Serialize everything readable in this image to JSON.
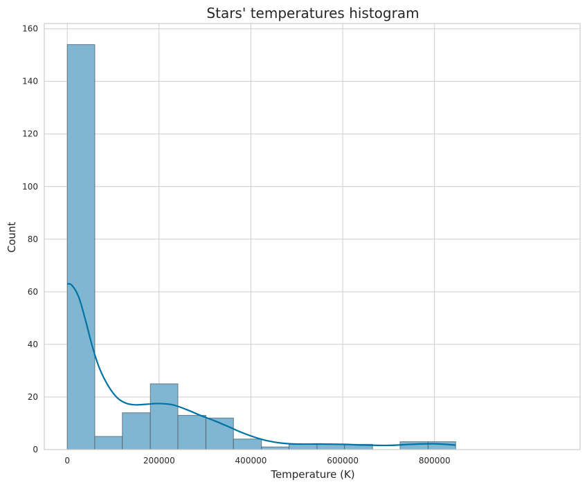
{
  "chart_data": {
    "type": "bar",
    "title": "Stars' temperatures histogram",
    "xlabel": "Temperature (K)",
    "ylabel": "Count",
    "xlim": [
      -50000,
      1117000
    ],
    "ylim": [
      0,
      162
    ],
    "x_ticks": [
      0,
      200000,
      400000,
      600000,
      800000
    ],
    "y_ticks": [
      0,
      20,
      40,
      60,
      80,
      100,
      120,
      140,
      160
    ],
    "grid": true,
    "bins": [
      {
        "start": 0,
        "end": 60000,
        "count": 154
      },
      {
        "start": 60000,
        "end": 120000,
        "count": 5
      },
      {
        "start": 120000,
        "end": 181000,
        "count": 14
      },
      {
        "start": 181000,
        "end": 241000,
        "count": 25
      },
      {
        "start": 241000,
        "end": 302000,
        "count": 13
      },
      {
        "start": 302000,
        "end": 362000,
        "count": 12
      },
      {
        "start": 362000,
        "end": 423000,
        "count": 4
      },
      {
        "start": 423000,
        "end": 483000,
        "count": 1
      },
      {
        "start": 483000,
        "end": 544000,
        "count": 2
      },
      {
        "start": 544000,
        "end": 604000,
        "count": 2
      },
      {
        "start": 604000,
        "end": 665000,
        "count": 2
      },
      {
        "start": 665000,
        "end": 725000,
        "count": 0
      },
      {
        "start": 725000,
        "end": 786000,
        "count": 3
      },
      {
        "start": 786000,
        "end": 846000,
        "count": 3
      }
    ],
    "kde": {
      "x": [
        0,
        10000,
        25000,
        40000,
        55000,
        70000,
        90000,
        110000,
        130000,
        150000,
        170000,
        200000,
        230000,
        260000,
        290000,
        320000,
        350000,
        380000,
        410000,
        440000,
        470000,
        500000,
        550000,
        600000,
        650000,
        700000,
        750000,
        800000,
        846000
      ],
      "y": [
        63,
        62.5,
        58,
        49,
        39,
        31,
        24,
        19.5,
        17.5,
        17,
        17.2,
        17.5,
        17,
        15.2,
        13,
        11,
        8.8,
        6.5,
        4.6,
        3.2,
        2.4,
        2.1,
        2.1,
        2.0,
        1.7,
        1.6,
        2.0,
        2.2,
        1.7
      ]
    },
    "colors": {
      "bar_fill": "#7fb7d3",
      "bar_edge": "#4a5a66",
      "kde_line": "#0072a4",
      "grid": "#cdcdcd",
      "frame": "#cccccc"
    }
  }
}
